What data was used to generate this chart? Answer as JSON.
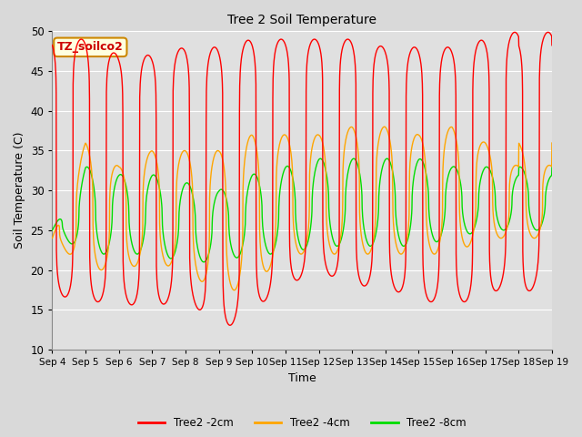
{
  "title": "Tree 2 Soil Temperature",
  "xlabel": "Time",
  "ylabel": "Soil Temperature (C)",
  "ylim": [
    10,
    50
  ],
  "annotation": "TZ_soilco2",
  "x_tick_labels": [
    "Sep 4",
    "Sep 5",
    "Sep 6",
    "Sep 7",
    "Sep 8",
    "Sep 9",
    "Sep 10",
    "Sep 11",
    "Sep 12",
    "Sep 13",
    "Sep 14",
    "Sep 15",
    "Sep 16",
    "Sep 17",
    "Sep 18",
    "Sep 19"
  ],
  "line_colors": [
    "#ff0000",
    "#ffa500",
    "#00dd00"
  ],
  "line_labels": [
    "Tree2 -2cm",
    "Tree2 -4cm",
    "Tree2 -8cm"
  ],
  "background_color": "#d9d9d9",
  "plot_bg_color": "#e0e0e0",
  "grid_color": "#ffffff",
  "num_days": 15,
  "points_per_day": 144,
  "depth2_peaks": [
    49,
    49,
    47,
    47,
    48,
    48,
    49,
    49,
    49,
    49,
    48,
    48,
    48,
    49,
    50
  ],
  "depth2_troughs": [
    17,
    16,
    16,
    15,
    17,
    12,
    15,
    18,
    20,
    18,
    18,
    16,
    16,
    16,
    20
  ],
  "depth4_peaks": [
    24,
    36,
    33,
    35,
    35,
    35,
    37,
    37,
    37,
    38,
    38,
    37,
    38,
    36,
    33
  ],
  "depth4_troughs": [
    24,
    20,
    20,
    21,
    20,
    17,
    18,
    22,
    22,
    22,
    22,
    22,
    22,
    24,
    24
  ],
  "depth8_peaks": [
    25,
    33,
    32,
    32,
    31,
    30,
    32,
    33,
    34,
    34,
    34,
    34,
    33,
    33,
    32
  ],
  "depth8_troughs": [
    25,
    22,
    22,
    22,
    21,
    21,
    22,
    22,
    23,
    23,
    23,
    23,
    24,
    25,
    25
  ],
  "depth2_peak_phase": 0.62,
  "depth4_peak_phase": 0.72,
  "depth8_peak_phase": 0.8,
  "depth2_sharpness": 8.0,
  "depth4_sharpness": 3.0,
  "depth8_sharpness": 2.0
}
